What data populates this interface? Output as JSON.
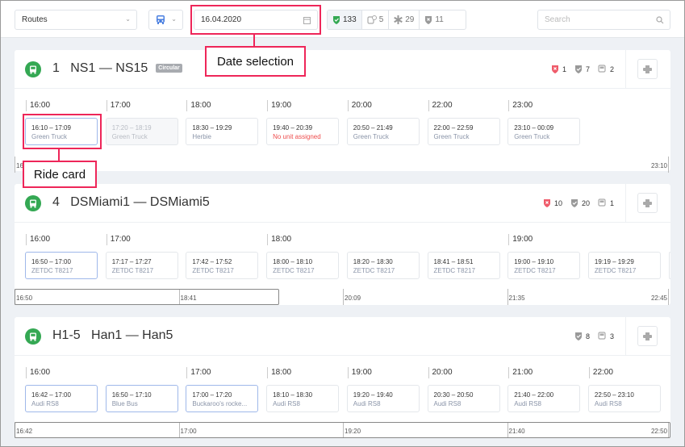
{
  "toolbar": {
    "routes_select": "Routes",
    "date": "16.04.2020",
    "search_placeholder": "Search",
    "stats": [
      {
        "icon": "shield-check-icon",
        "value": "133",
        "active": true,
        "color": "#34a853"
      },
      {
        "icon": "bus-clock-icon",
        "value": "5"
      },
      {
        "icon": "asterisk-icon",
        "value": "29"
      },
      {
        "icon": "shield-x-icon",
        "value": "11"
      }
    ]
  },
  "annotations": {
    "date_label": "Date selection",
    "ride_label": "Ride card"
  },
  "colors": {
    "accent": "#34a853",
    "annotation": "#ee2659",
    "error": "#ee4d4d"
  },
  "routes": [
    {
      "number": "1",
      "name": "NS1 — NS15",
      "badge": "Circular",
      "counts": [
        {
          "icon": "shield-x-icon",
          "value": "1",
          "red": true
        },
        {
          "icon": "shield-check-icon",
          "value": "7"
        },
        {
          "icon": "bus-icon",
          "value": "2"
        }
      ],
      "hours": [
        {
          "col": 0,
          "label": "16:00"
        },
        {
          "col": 1,
          "label": "17:00"
        },
        {
          "col": 2,
          "label": "18:00"
        },
        {
          "col": 3,
          "label": "19:00"
        },
        {
          "col": 4,
          "label": "20:00"
        },
        {
          "col": 5,
          "label": "22:00"
        },
        {
          "col": 6,
          "label": "23:00"
        }
      ],
      "rides": [
        {
          "time": "16:10 – 17:09",
          "unit": "Green Truck",
          "state": "selected"
        },
        {
          "time": "17:20 – 18:19",
          "unit": "Green Truck",
          "state": "past"
        },
        {
          "time": "18:30 – 19:29",
          "unit": "Herbie"
        },
        {
          "time": "19:40 – 20:39",
          "unit": "No unit assigned",
          "state": "warn"
        },
        {
          "time": "20:50 – 21:49",
          "unit": "Green Truck"
        },
        {
          "time": "22:00 – 22:59",
          "unit": "Green Truck"
        },
        {
          "time": "23:10 – 00:09",
          "unit": "Green Truck"
        }
      ],
      "scale": [
        "16:10",
        "23:10"
      ]
    },
    {
      "number": "4",
      "name": "DSMiami1 — DSMiami5",
      "counts": [
        {
          "icon": "shield-x-icon",
          "value": "10",
          "red": true
        },
        {
          "icon": "shield-check-icon",
          "value": "20"
        },
        {
          "icon": "bus-icon",
          "value": "1"
        }
      ],
      "hours": [
        {
          "col": 0,
          "label": "16:00"
        },
        {
          "col": 1,
          "label": "17:00"
        },
        {
          "col": 3,
          "label": "18:00"
        },
        {
          "col": 6,
          "label": "19:00"
        }
      ],
      "rides": [
        {
          "time": "16:50 – 17:00",
          "unit": "ZETDC T8217",
          "state": "selected"
        },
        {
          "time": "17:17 – 17:27",
          "unit": "ZETDC T8217"
        },
        {
          "time": "17:42 – 17:52",
          "unit": "ZETDC T8217"
        },
        {
          "time": "18:00 – 18:10",
          "unit": "ZETDC T8217"
        },
        {
          "time": "18:20 – 18:30",
          "unit": "ZETDC T8217"
        },
        {
          "time": "18:41 – 18:51",
          "unit": "ZETDC T8217"
        },
        {
          "time": "19:00 – 19:10",
          "unit": "ZETDC T8217"
        },
        {
          "time": "19:19 – 19:29",
          "unit": "ZETDC T8217"
        },
        {
          "time": "",
          "unit": ""
        }
      ],
      "scale": [
        "16:50",
        "18:41",
        "20:09",
        "21:35",
        "22:45"
      ]
    },
    {
      "number": "H1-5",
      "name": "Han1 — Han5",
      "counts": [
        {
          "icon": "shield-check-icon",
          "value": "8"
        },
        {
          "icon": "bus-icon",
          "value": "3"
        }
      ],
      "hours": [
        {
          "col": 0,
          "label": "16:00"
        },
        {
          "col": 2,
          "label": "17:00"
        },
        {
          "col": 3,
          "label": "18:00"
        },
        {
          "col": 4,
          "label": "19:00"
        },
        {
          "col": 5,
          "label": "20:00"
        },
        {
          "col": 6,
          "label": "21:00"
        },
        {
          "col": 7,
          "label": "22:00"
        }
      ],
      "rides": [
        {
          "time": "16:42 – 17:00",
          "unit": "Audi RS8",
          "state": "selected"
        },
        {
          "time": "16:50 – 17:10",
          "unit": "Blue Bus",
          "state": "selected"
        },
        {
          "time": "17:00 – 17:20",
          "unit": "Buckaroo's rocke...",
          "state": "selected"
        },
        {
          "time": "18:10 – 18:30",
          "unit": "Audi RS8"
        },
        {
          "time": "19:20 – 19:40",
          "unit": "Audi RS8"
        },
        {
          "time": "20:30 – 20:50",
          "unit": "Audi RS8"
        },
        {
          "time": "21:40 – 22:00",
          "unit": "Audi RS8"
        },
        {
          "time": "22:50 – 23:10",
          "unit": "Audi RS8"
        }
      ],
      "scale": [
        "16:42",
        "17:00",
        "19:20",
        "21:40",
        "22:50"
      ]
    }
  ]
}
